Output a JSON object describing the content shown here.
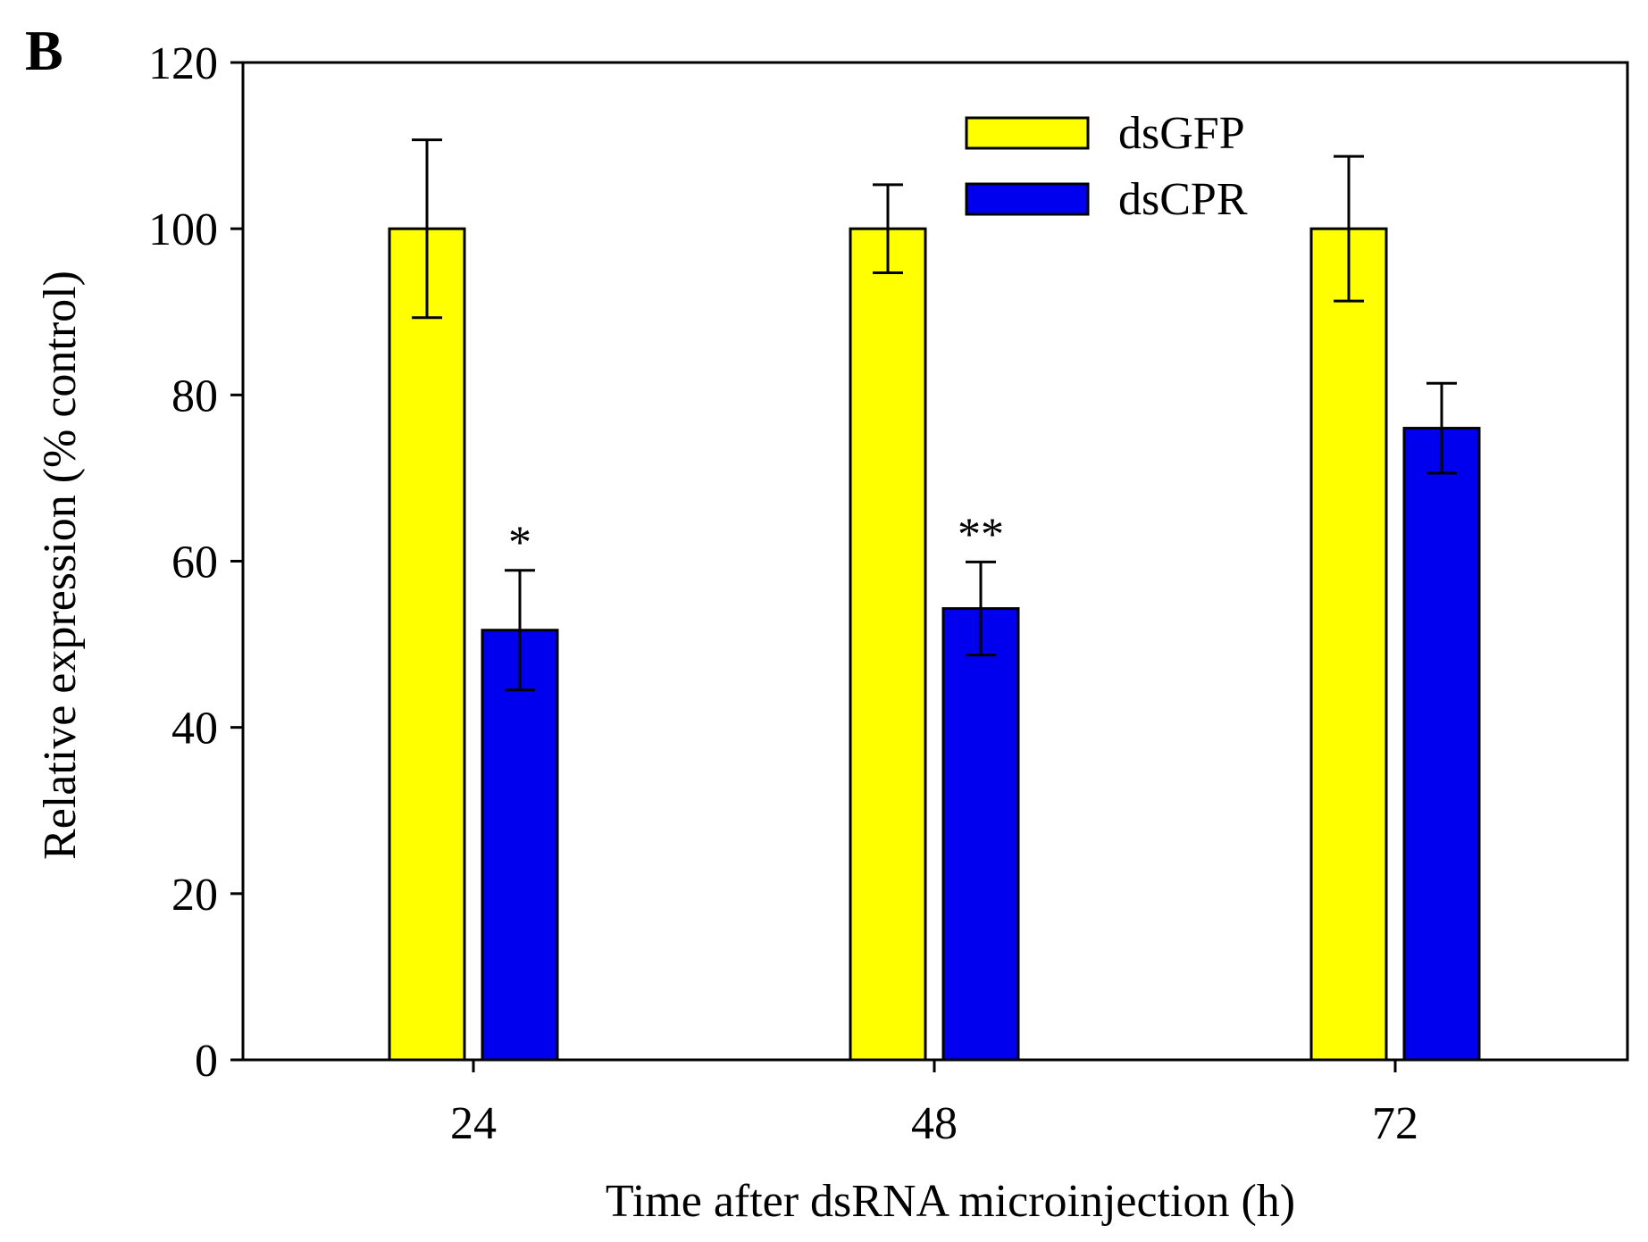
{
  "panel_label": "B",
  "chart_data": {
    "type": "bar",
    "title": "",
    "xlabel": "Time after dsRNA microinjection (h)",
    "ylabel": "Relative expression (% control)",
    "categories": [
      "24",
      "48",
      "72"
    ],
    "ylim": [
      0,
      120
    ],
    "yticks": [
      0,
      20,
      40,
      60,
      80,
      100,
      120
    ],
    "grid": false,
    "legend_position": "top-center",
    "series": [
      {
        "name": "dsGFP",
        "color": "#ffff00",
        "values": [
          100,
          100,
          100
        ],
        "errors": [
          10.7,
          5.3,
          8.7
        ]
      },
      {
        "name": "dsCPR",
        "color": "#0000ee",
        "values": [
          51.7,
          54.3,
          76.0
        ],
        "errors": [
          7.2,
          5.6,
          5.4
        ]
      }
    ],
    "significance": [
      {
        "category": "24",
        "series": "dsCPR",
        "label": "*"
      },
      {
        "category": "48",
        "series": "dsCPR",
        "label": "**"
      },
      {
        "category": "72",
        "series": "dsCPR",
        "label": ""
      }
    ]
  }
}
